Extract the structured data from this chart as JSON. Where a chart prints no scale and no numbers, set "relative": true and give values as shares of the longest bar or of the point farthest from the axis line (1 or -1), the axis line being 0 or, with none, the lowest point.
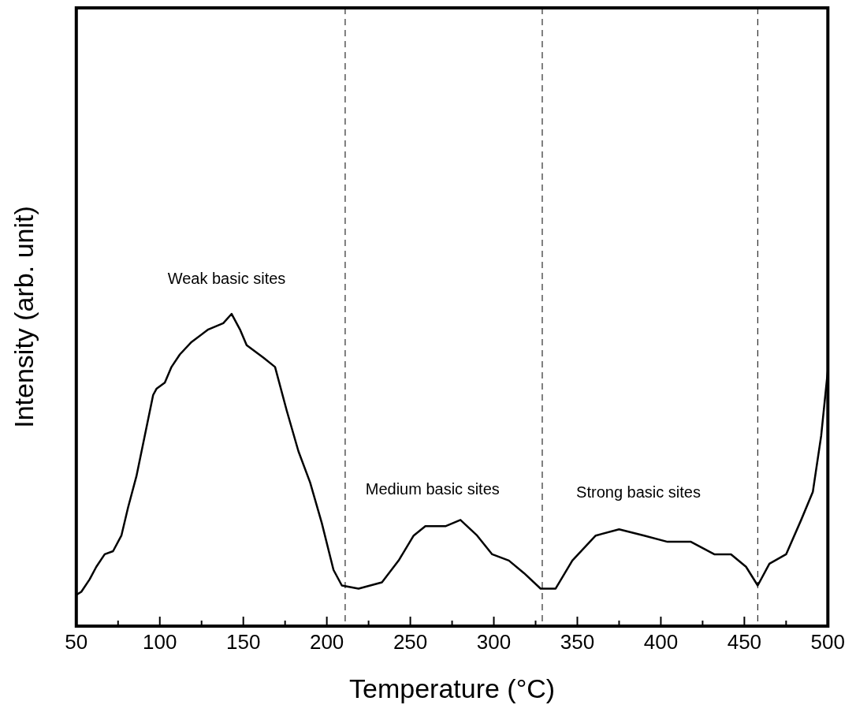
{
  "chart_data": {
    "type": "line",
    "xlabel": "Temperature (°C)",
    "ylabel": "Intensity (arb. unit)",
    "relative": true,
    "grid": false,
    "legend": false,
    "marker": "none",
    "line_style": "solid",
    "tick_labels": "x",
    "xlim": [
      50,
      500
    ],
    "xticks": [
      50,
      {
        "value": 75,
        "label": null
      },
      100,
      {
        "value": 125,
        "label": null
      },
      150,
      {
        "value": 175,
        "label": null
      },
      200,
      {
        "value": 225,
        "label": null
      },
      250,
      {
        "value": 275,
        "label": null
      },
      300,
      {
        "value": 325,
        "label": null
      },
      350,
      {
        "value": 375,
        "label": null
      },
      400,
      {
        "value": 425,
        "label": null
      },
      450,
      {
        "value": 475,
        "label": null
      },
      500
    ],
    "x": [
      50,
      53,
      58,
      62,
      67,
      72,
      77,
      81,
      86,
      91,
      96,
      98,
      103,
      107,
      112,
      119,
      129,
      138,
      143,
      148,
      152,
      162,
      169,
      176,
      183,
      190,
      197,
      204,
      209,
      219,
      233,
      243,
      252,
      259,
      271,
      280,
      290,
      299,
      309,
      318,
      328,
      337,
      347,
      361,
      375,
      390,
      404,
      418,
      432,
      442,
      451,
      458,
      465,
      475,
      484,
      491,
      496,
      500
    ],
    "series": [
      {
        "color": "#000000",
        "values": [
          0.1,
          0.11,
          0.15,
          0.19,
          0.23,
          0.24,
          0.29,
          0.38,
          0.48,
          0.61,
          0.74,
          0.76,
          0.78,
          0.83,
          0.87,
          0.91,
          0.95,
          0.97,
          1.0,
          0.95,
          0.9,
          0.86,
          0.83,
          0.69,
          0.56,
          0.46,
          0.33,
          0.18,
          0.13,
          0.12,
          0.14,
          0.21,
          0.29,
          0.32,
          0.32,
          0.34,
          0.29,
          0.23,
          0.21,
          0.17,
          0.12,
          0.12,
          0.21,
          0.29,
          0.31,
          0.29,
          0.27,
          0.27,
          0.23,
          0.23,
          0.19,
          0.13,
          0.2,
          0.23,
          0.34,
          0.43,
          0.61,
          0.82
        ]
      }
    ],
    "ref_lines": [
      {
        "axis": "x",
        "value": 211,
        "color": "#000000",
        "line_style": "dashed"
      },
      {
        "axis": "x",
        "value": 329,
        "color": "#000000",
        "line_style": "dashed"
      },
      {
        "axis": "x",
        "value": 458,
        "color": "#000000",
        "line_style": "dashed"
      }
    ],
    "annotations": [
      "Weak basic sites",
      "Medium basic sites",
      "Strong basic sites"
    ]
  }
}
